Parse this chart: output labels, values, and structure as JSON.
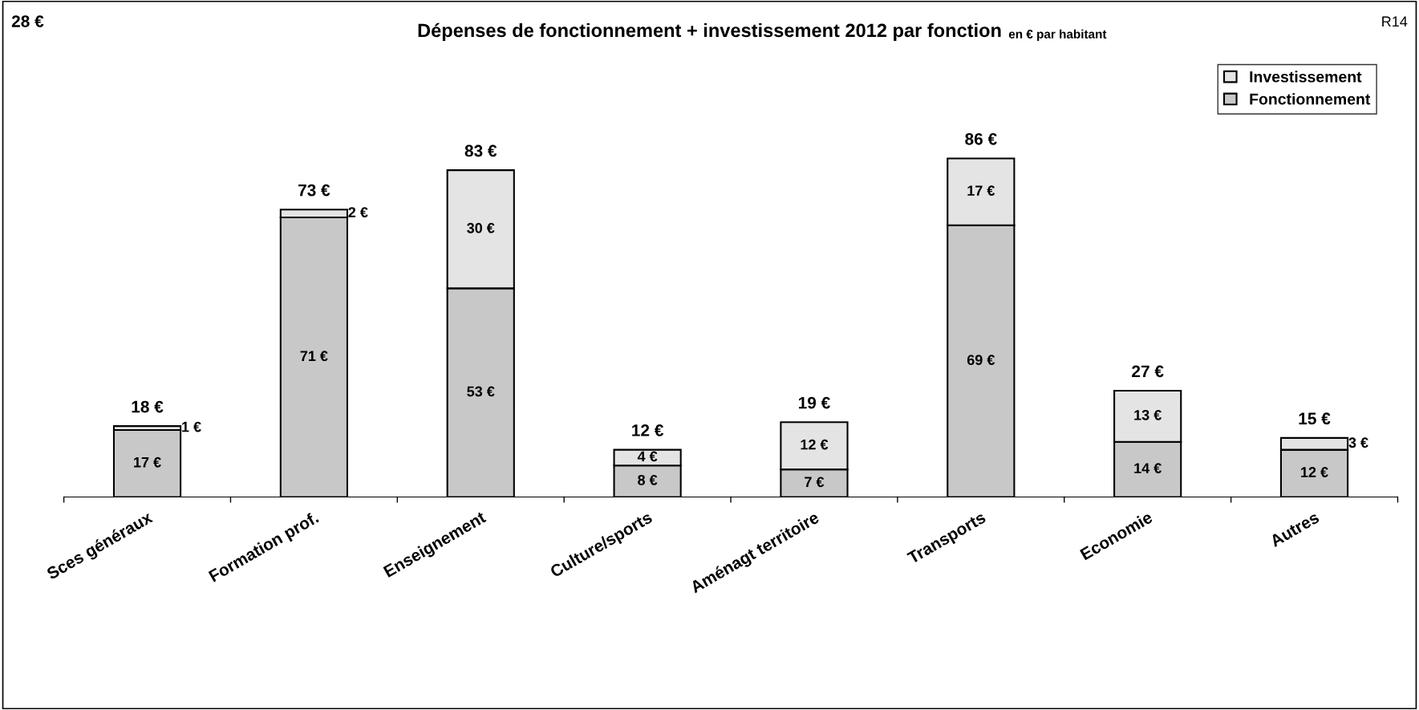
{
  "chart_data": {
    "type": "bar",
    "title": "Dépenses de fonctionnement + investissement 2012 par fonction",
    "subtitle": "en € par habitant",
    "categories": [
      "Sces généraux",
      "Formation prof.",
      "Enseignement",
      "Culture/sports",
      "Aménagt territoire",
      "Transports",
      "Economie",
      "Autres"
    ],
    "stacked": true,
    "legend": "top right",
    "series": [
      {
        "name": "Fonctionnement",
        "color": "#c8c8c8",
        "values": [
          17,
          71,
          53,
          8,
          7,
          69,
          14,
          12
        ],
        "value_labels": [
          "17 €",
          "71 €",
          "53 €",
          "8 €",
          "7 €",
          "69 €",
          "14 €",
          "12 €"
        ]
      },
      {
        "name": "Investissement",
        "color": "#e4e4e4",
        "values": [
          1,
          2,
          30,
          4,
          12,
          17,
          13,
          3
        ],
        "value_labels": [
          "1 €",
          "2 €",
          "30 €",
          "4 €",
          "12 €",
          "17 €",
          "13 €",
          "3 €"
        ]
      }
    ],
    "totals": [
      "18 €",
      "73 €",
      "83 €",
      "12 €",
      "19 €",
      "86 €",
      "27 €",
      "15 €"
    ],
    "annotations": [
      "28 €",
      "R14"
    ]
  }
}
